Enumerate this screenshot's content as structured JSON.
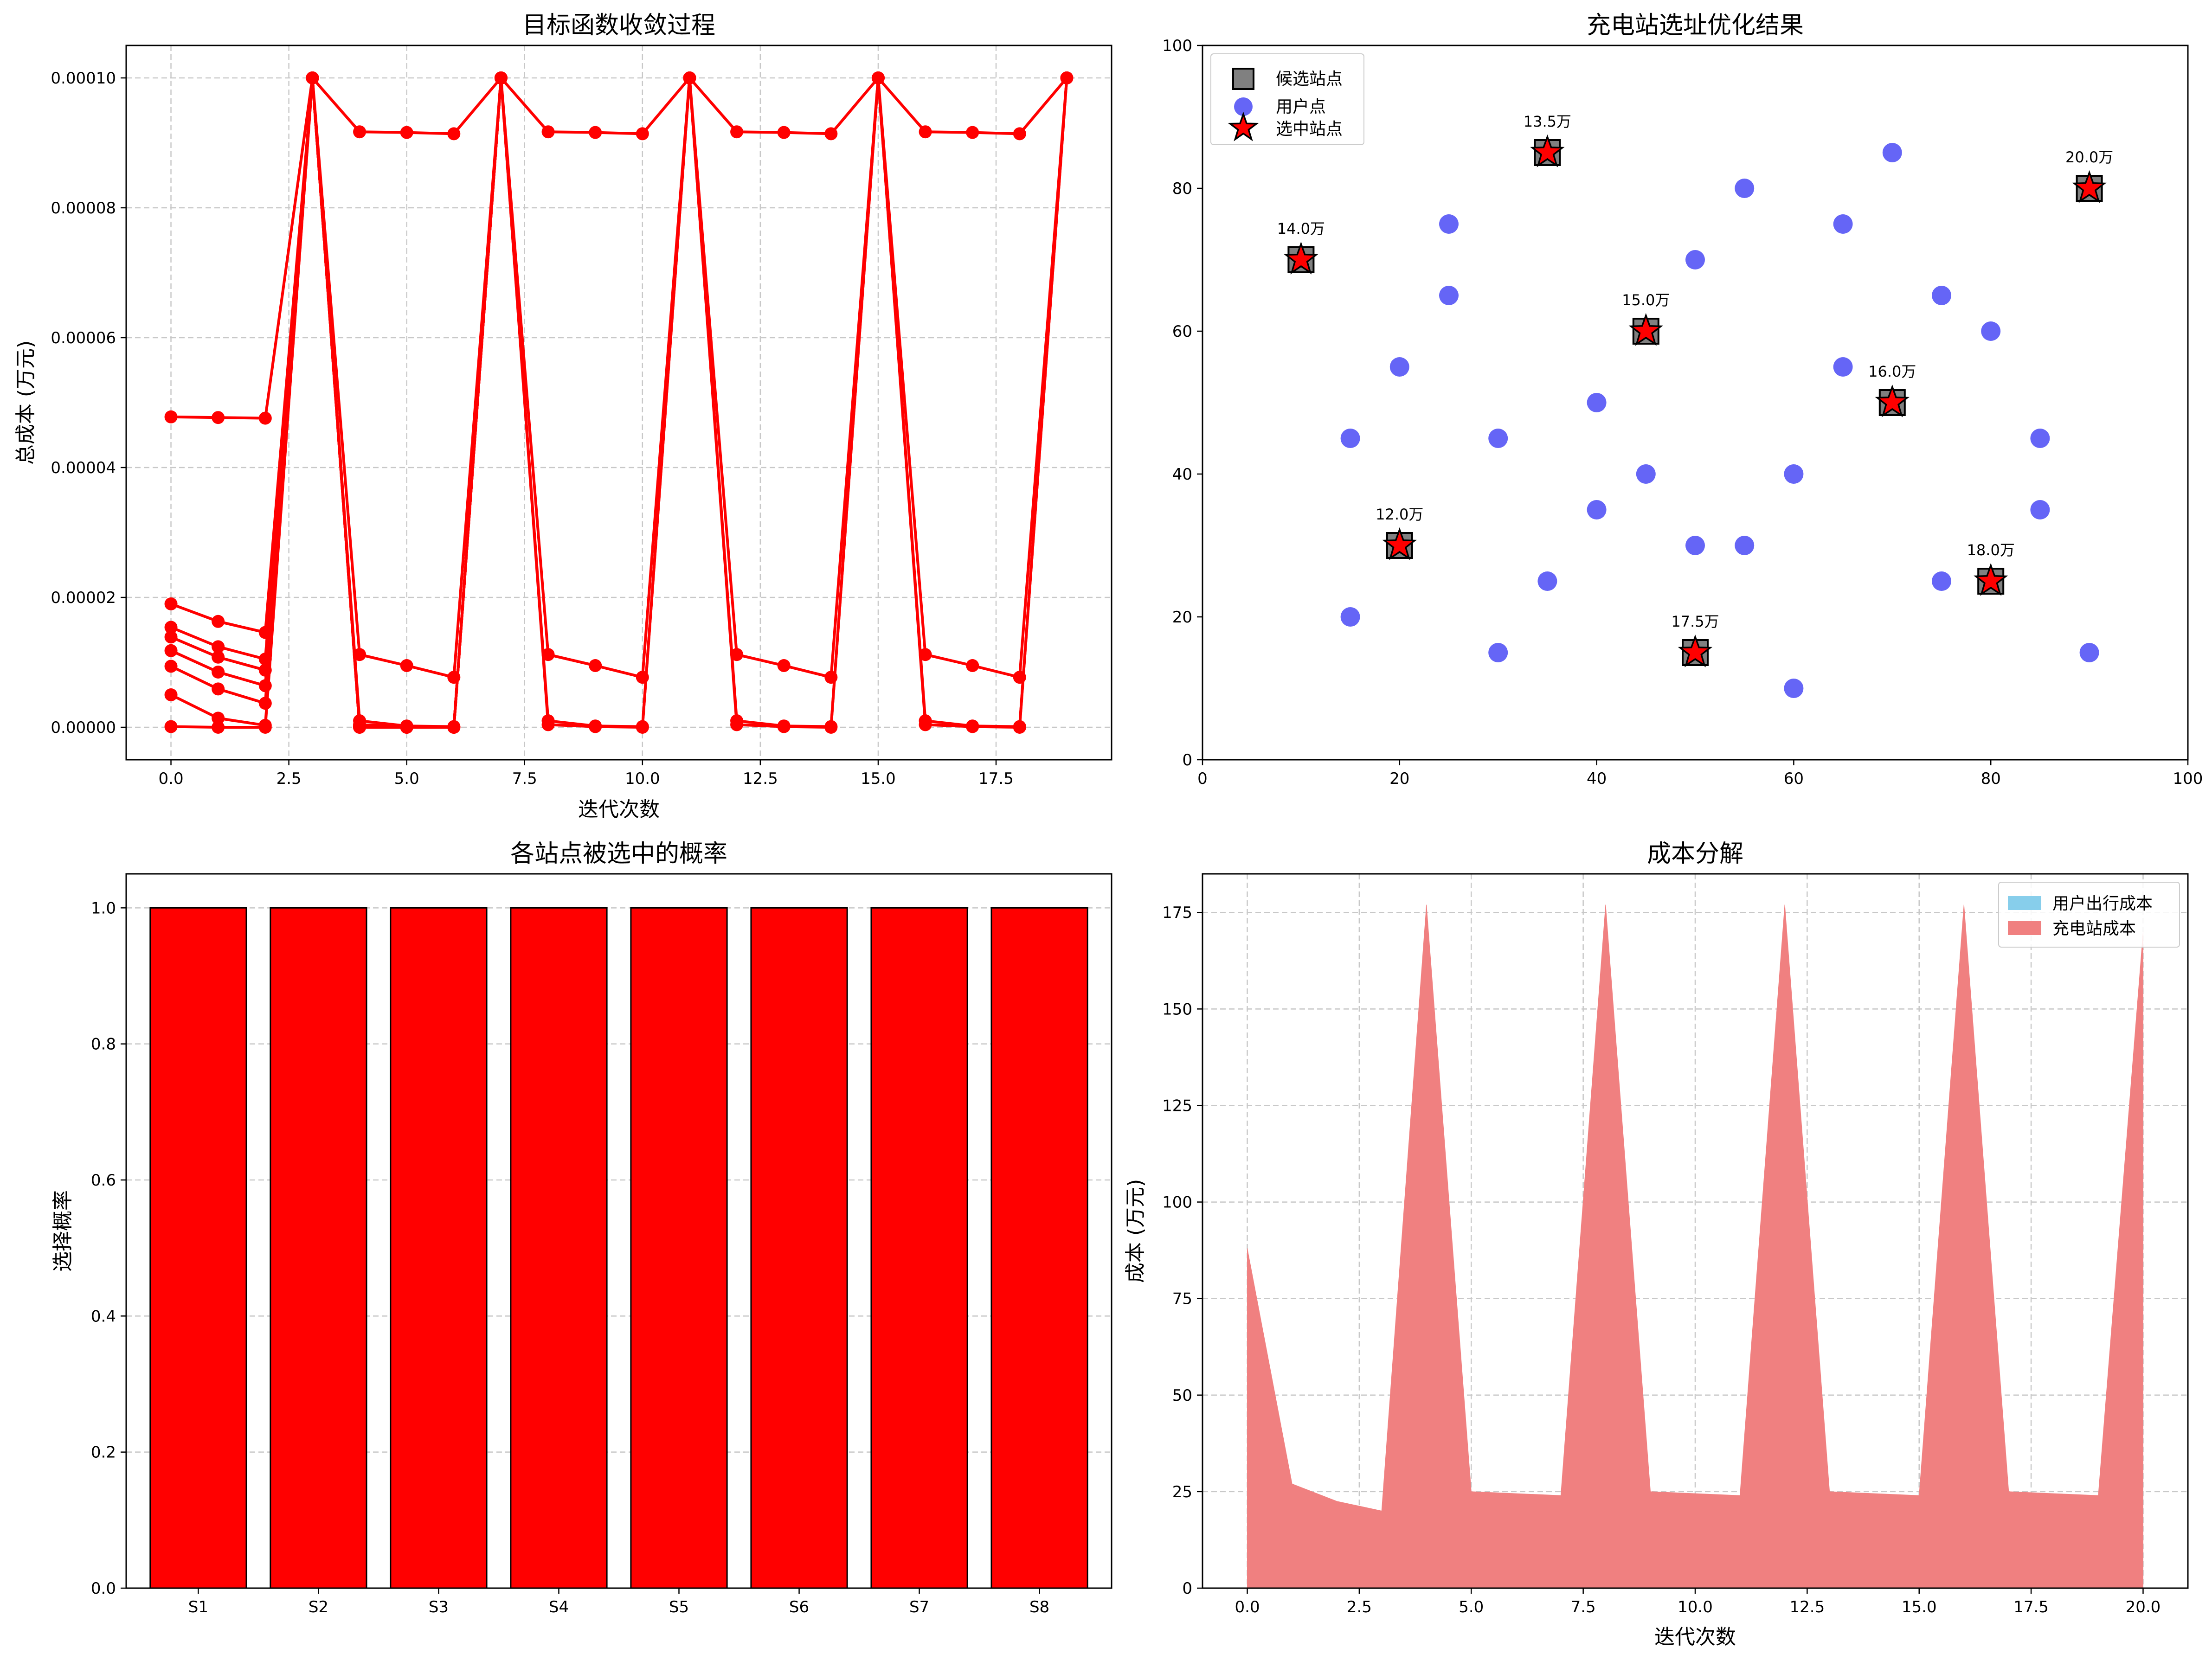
{
  "colors": {
    "line": "#ff0000",
    "bar": "#ff0000",
    "candidate": "#808080",
    "user": "#4a4af5",
    "selected": "#ff0000",
    "user_travel_cost": "#87ceeb",
    "station_cost": "#f08080",
    "grid": "#c8c8c8"
  },
  "chart_data": [
    {
      "id": "convergence",
      "type": "line",
      "title": "目标函数收敛过程",
      "xlabel": "迭代次数",
      "ylabel": "总成本 (万元)",
      "xlim": [
        -0.95,
        19.95
      ],
      "ylim": [
        -5e-06,
        0.000105
      ],
      "xticks": [
        0,
        2.5,
        5,
        7.5,
        10,
        12.5,
        15,
        17.5
      ],
      "xtick_labels": [
        "0.0",
        "2.5",
        "5.0",
        "7.5",
        "10.0",
        "12.5",
        "15.0",
        "17.5"
      ],
      "yticks": [
        0,
        2e-05,
        4e-05,
        6e-05,
        8e-05,
        0.0001
      ],
      "ytick_labels": [
        "0.00000",
        "0.00002",
        "0.00004",
        "0.00006",
        "0.00008",
        "0.00010"
      ],
      "grid": true,
      "series": [
        {
          "x": [
            0,
            1,
            2,
            3,
            4,
            5,
            6,
            7
          ],
          "y": [
            4.78e-05,
            4.77e-05,
            4.76e-05,
            0.0001,
            9.17e-05,
            9.16e-05,
            9.14e-05,
            0.0001
          ]
        },
        {
          "x": [
            0,
            1,
            2,
            3,
            4,
            5,
            6,
            7
          ],
          "y": [
            1.9e-05,
            1.63e-05,
            1.46e-05,
            0.0001,
            1.12e-05,
            9.5e-06,
            7.7e-06,
            0.0001
          ]
        },
        {
          "x": [
            0,
            1,
            2,
            3,
            4,
            5,
            6,
            7
          ],
          "y": [
            1.54e-05,
            1.24e-05,
            1.05e-05,
            0.0001,
            1e-06,
            2e-07,
            1e-07,
            0.0001
          ]
        },
        {
          "x": [
            0,
            1,
            2,
            3,
            4,
            5,
            6,
            7
          ],
          "y": [
            1.39e-05,
            1.08e-05,
            8.8e-06,
            0.0001,
            4e-07,
            1e-07,
            0.0,
            0.0001
          ]
        },
        {
          "x": [
            0,
            1,
            2,
            3,
            4,
            5,
            6,
            7
          ],
          "y": [
            1.18e-05,
            8.5e-06,
            6.4e-06,
            0.0001,
            2e-07,
            0.0,
            0.0,
            0.0001
          ]
        },
        {
          "x": [
            0,
            1,
            2,
            3,
            4,
            5,
            6,
            7
          ],
          "y": [
            9.4e-06,
            5.9e-06,
            3.7e-06,
            0.0001,
            1e-07,
            0.0,
            0.0,
            0.0001
          ]
        },
        {
          "x": [
            0,
            1,
            2,
            3,
            4,
            5,
            6,
            7
          ],
          "y": [
            5e-06,
            1.4e-06,
            3e-07,
            0.0001,
            0.0,
            0.0,
            0.0,
            0.0001
          ]
        },
        {
          "x": [
            0,
            1,
            2,
            3,
            4,
            5,
            6,
            7
          ],
          "y": [
            1e-07,
            0.0,
            0.0,
            0.0001,
            0.0,
            0.0,
            0.0,
            0.0001
          ]
        },
        {
          "x": [
            7,
            8,
            9,
            10,
            11,
            12,
            13,
            14,
            15,
            16,
            17,
            18,
            19
          ],
          "y": [
            0.0001,
            9.17e-05,
            9.16e-05,
            9.14e-05,
            0.0001,
            9.17e-05,
            9.16e-05,
            9.14e-05,
            0.0001,
            9.17e-05,
            9.16e-05,
            9.14e-05,
            0.0001
          ]
        },
        {
          "x": [
            7,
            8,
            9,
            10,
            11,
            12,
            13,
            14,
            15,
            16,
            17,
            18,
            19
          ],
          "y": [
            0.0001,
            1.12e-05,
            9.5e-06,
            7.7e-06,
            0.0001,
            1.12e-05,
            9.5e-06,
            7.7e-06,
            0.0001,
            1.12e-05,
            9.5e-06,
            7.7e-06,
            0.0001
          ]
        },
        {
          "x": [
            7,
            8,
            9,
            10,
            11,
            12,
            13,
            14,
            15,
            16,
            17,
            18,
            19
          ],
          "y": [
            0.0001,
            1e-06,
            2e-07,
            1e-07,
            0.0001,
            1e-06,
            2e-07,
            1e-07,
            0.0001,
            1e-06,
            2e-07,
            1e-07,
            0.0001
          ]
        },
        {
          "x": [
            7,
            8,
            9,
            10,
            11,
            12,
            13,
            14,
            15,
            16,
            17,
            18,
            19
          ],
          "y": [
            0.0001,
            4e-07,
            1e-07,
            0.0,
            0.0001,
            4e-07,
            1e-07,
            0.0,
            0.0001,
            4e-07,
            1e-07,
            0.0,
            0.0001
          ]
        }
      ]
    },
    {
      "id": "siting",
      "type": "scatter",
      "title": "充电站选址优化结果",
      "xlim": [
        0,
        100
      ],
      "ylim": [
        0,
        100
      ],
      "xticks": [
        0,
        20,
        40,
        60,
        80,
        100
      ],
      "xtick_labels": [
        "0",
        "20",
        "40",
        "60",
        "80",
        "100"
      ],
      "yticks": [
        0,
        20,
        40,
        60,
        80,
        100
      ],
      "ytick_labels": [
        "0",
        "20",
        "40",
        "60",
        "80",
        "100"
      ],
      "grid": false,
      "legend": {
        "position": "top-left",
        "entries": [
          {
            "label": "候选站点",
            "marker": "square"
          },
          {
            "label": "用户点",
            "marker": "circle"
          },
          {
            "label": "选中站点",
            "marker": "star"
          }
        ]
      },
      "candidates": [
        [
          20,
          30
        ],
        [
          50,
          15
        ],
        [
          80,
          25
        ],
        [
          10,
          70
        ],
        [
          35,
          85
        ],
        [
          90,
          80
        ],
        [
          45,
          60
        ],
        [
          70,
          50
        ]
      ],
      "users": [
        [
          15,
          45
        ],
        [
          15,
          20
        ],
        [
          20,
          55
        ],
        [
          25,
          75
        ],
        [
          25,
          65
        ],
        [
          30,
          45
        ],
        [
          30,
          15
        ],
        [
          35,
          25
        ],
        [
          40,
          50
        ],
        [
          40,
          35
        ],
        [
          45,
          40
        ],
        [
          50,
          70
        ],
        [
          50,
          30
        ],
        [
          55,
          80
        ],
        [
          55,
          30
        ],
        [
          60,
          40
        ],
        [
          60,
          10
        ],
        [
          65,
          75
        ],
        [
          65,
          55
        ],
        [
          70,
          85
        ],
        [
          75,
          65
        ],
        [
          75,
          25
        ],
        [
          80,
          60
        ],
        [
          85,
          45
        ],
        [
          85,
          35
        ],
        [
          90,
          15
        ]
      ],
      "selected": [
        [
          20,
          30
        ],
        [
          50,
          15
        ],
        [
          80,
          25
        ],
        [
          10,
          70
        ],
        [
          35,
          85
        ],
        [
          90,
          80
        ],
        [
          45,
          60
        ],
        [
          70,
          50
        ]
      ],
      "annotations": [
        {
          "x": 20,
          "y": 30,
          "text": "12.0万"
        },
        {
          "x": 50,
          "y": 15,
          "text": "17.5万"
        },
        {
          "x": 80,
          "y": 25,
          "text": "18.0万"
        },
        {
          "x": 10,
          "y": 70,
          "text": "14.0万"
        },
        {
          "x": 35,
          "y": 85,
          "text": "13.5万"
        },
        {
          "x": 90,
          "y": 80,
          "text": "20.0万"
        },
        {
          "x": 45,
          "y": 60,
          "text": "15.0万"
        },
        {
          "x": 70,
          "y": 50,
          "text": "16.0万"
        }
      ]
    },
    {
      "id": "probability",
      "type": "bar",
      "title": "各站点被选中的概率",
      "ylabel": "选择概率",
      "categories": [
        "S1",
        "S2",
        "S3",
        "S4",
        "S5",
        "S6",
        "S7",
        "S8"
      ],
      "values": [
        1.0,
        1.0,
        1.0,
        1.0,
        1.0,
        1.0,
        1.0,
        1.0
      ],
      "ylim": [
        0,
        1.05
      ],
      "yticks": [
        0,
        0.2,
        0.4,
        0.6,
        0.8,
        1.0
      ],
      "ytick_labels": [
        "0.0",
        "0.2",
        "0.4",
        "0.6",
        "0.8",
        "1.0"
      ],
      "grid": true
    },
    {
      "id": "breakdown",
      "type": "area",
      "title": "成本分解",
      "xlabel": "迭代次数",
      "ylabel": "成本 (万元)",
      "xlim": [
        -1,
        21
      ],
      "ylim": [
        0,
        185
      ],
      "xticks": [
        0,
        2.5,
        5,
        7.5,
        10,
        12.5,
        15,
        17.5,
        20
      ],
      "xtick_labels": [
        "0.0",
        "2.5",
        "5.0",
        "7.5",
        "10.0",
        "12.5",
        "15.0",
        "17.5",
        "20.0"
      ],
      "yticks": [
        0,
        25,
        50,
        75,
        100,
        125,
        150,
        175
      ],
      "ytick_labels": [
        "0",
        "25",
        "50",
        "75",
        "100",
        "125",
        "150",
        "175"
      ],
      "grid": true,
      "legend": {
        "position": "top-right"
      },
      "x": [
        0,
        1,
        2,
        3,
        4,
        5,
        6,
        7,
        8,
        9,
        10,
        11,
        12,
        13,
        14,
        15,
        16,
        17,
        18,
        19,
        20
      ],
      "series": [
        {
          "name": "用户出行成本",
          "values": [
            0,
            0,
            0,
            0,
            0,
            0,
            0,
            0,
            0,
            0,
            0,
            0,
            0,
            0,
            0,
            0,
            0,
            0,
            0,
            0,
            0
          ]
        },
        {
          "name": "充电站成本",
          "values": [
            88,
            27,
            22.5,
            20,
            177,
            25,
            24.5,
            24,
            177,
            25,
            24.5,
            24,
            177,
            25,
            24.5,
            24,
            177,
            25,
            24.5,
            24,
            170
          ]
        }
      ]
    }
  ]
}
